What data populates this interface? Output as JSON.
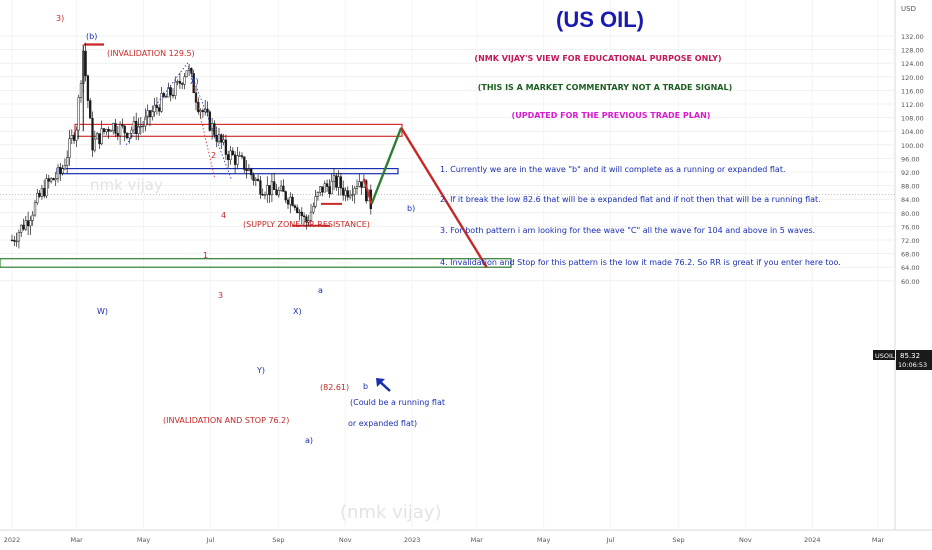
{
  "title": "(US OIL)",
  "disclaimers": [
    {
      "text": "(NMK VIJAY'S VIEW FOR EDUCATIONAL PURPOSE ONLY)",
      "color": "#c2185b"
    },
    {
      "text": "(THIS IS A MARKET COMMENTARY NOT A TRADE SIGNAL)",
      "color": "#1b5e20"
    },
    {
      "text": "(UPDATED FOR THE PREVIOUS TRADE PLAN)",
      "color": "#d81bd0"
    }
  ],
  "notes": [
    "1. Currently we are in the wave \"b\" and it will complete as a running or expanded flat.",
    "2. If it break the low 82.6 that will be a expanded flat and if not then that will be a running flat.",
    "3. For both pattern i am looking for thee wave \"C\" all the wave for 104 and above in 5 waves.",
    "4. Invalidation and Stop for this pattern is the low it made 76.2. So RR is great if you enter here too."
  ],
  "annotations": {
    "invalidation_top": "(INVALIDATION 129.5)",
    "supply_zone": "(SUPPLY ZONE OR RESISTANCE)",
    "invalidation_stop": "(INVALIDATION AND STOP 76.2)",
    "low_label": "(82.61)",
    "running_flat_1": "(Could be a running flat",
    "running_flat_2": "or expanded flat)",
    "watermark": "(nmk vijay)",
    "watermark2": "nmk vijay"
  },
  "wave_labels": {
    "top_3": "3)",
    "b_paren": "(b)",
    "x_paren": "X)",
    "w_paren": "W)",
    "y_paren": "Y)",
    "x2_paren": "X)",
    "a_small": "a",
    "b_small": "b",
    "a_paren": "a)",
    "b_paren2": "b)",
    "num_2": "2",
    "num_1": "1",
    "num_3": "3",
    "num_4": "4"
  },
  "price_axis": {
    "currency": "USD",
    "ticks": [
      "132.00",
      "128.00",
      "124.00",
      "120.00",
      "116.00",
      "112.00",
      "108.00",
      "104.00",
      "100.00",
      "96.00",
      "92.00",
      "88.00",
      "84.00",
      "80.00",
      "76.00",
      "72.00",
      "68.00",
      "64.00",
      "60.00"
    ],
    "symbol": "USOIL",
    "last_price": "85.32",
    "countdown": "10:06:53"
  },
  "time_axis": {
    "labels": [
      "2022",
      "Mar",
      "May",
      "Jul",
      "Sep",
      "Nov",
      "2023",
      "Mar",
      "May",
      "Jul",
      "Sep",
      "Nov",
      "2024",
      "Mar"
    ]
  },
  "colors": {
    "title": "#1a1ab0",
    "candle": "#1a1a1a",
    "supply_zone": "#d32f2f",
    "wx_zone": "#1a2fb0",
    "demand_zone": "#2e7d32",
    "path_up": "#2e7d32",
    "path_down": "#c62828",
    "notes": "#1a2fb0",
    "red_label": "#c62828"
  },
  "chart_data": {
    "type": "candlestick",
    "instrument": "USOIL",
    "currency": "USD",
    "ylim": [
      60,
      134
    ],
    "close_path": {
      "dates": [
        "2022-01-01",
        "2022-01-15",
        "2022-02-01",
        "2022-02-15",
        "2022-03-01",
        "2022-03-07",
        "2022-03-15",
        "2022-04-01",
        "2022-04-15",
        "2022-05-01",
        "2022-05-15",
        "2022-06-01",
        "2022-06-10",
        "2022-06-20",
        "2022-07-01",
        "2022-07-15",
        "2022-08-01",
        "2022-08-15",
        "2022-09-01",
        "2022-09-15",
        "2022-09-26",
        "2022-10-10",
        "2022-10-25",
        "2022-11-01",
        "2022-11-15",
        "2022-11-25"
      ],
      "values": [
        72,
        78,
        88,
        92,
        106,
        128,
        100,
        106,
        104,
        106,
        112,
        117,
        123,
        112,
        106,
        98,
        94,
        88,
        86,
        84,
        77,
        87,
        89,
        86,
        90,
        82
      ]
    },
    "projection": {
      "dates": [
        "2022-11-25",
        "2022-12-22",
        "2023-03-10"
      ],
      "values": [
        82.6,
        105,
        64
      ]
    },
    "levels": {
      "invalidation_high": 129.5,
      "supply_zone": [
        102.5,
        106
      ],
      "wx_zone": [
        91.5,
        93
      ],
      "demand_zone": [
        64,
        66.5
      ],
      "low_marker": 82.61,
      "stop": 76.2,
      "last_price": 85.32
    }
  }
}
